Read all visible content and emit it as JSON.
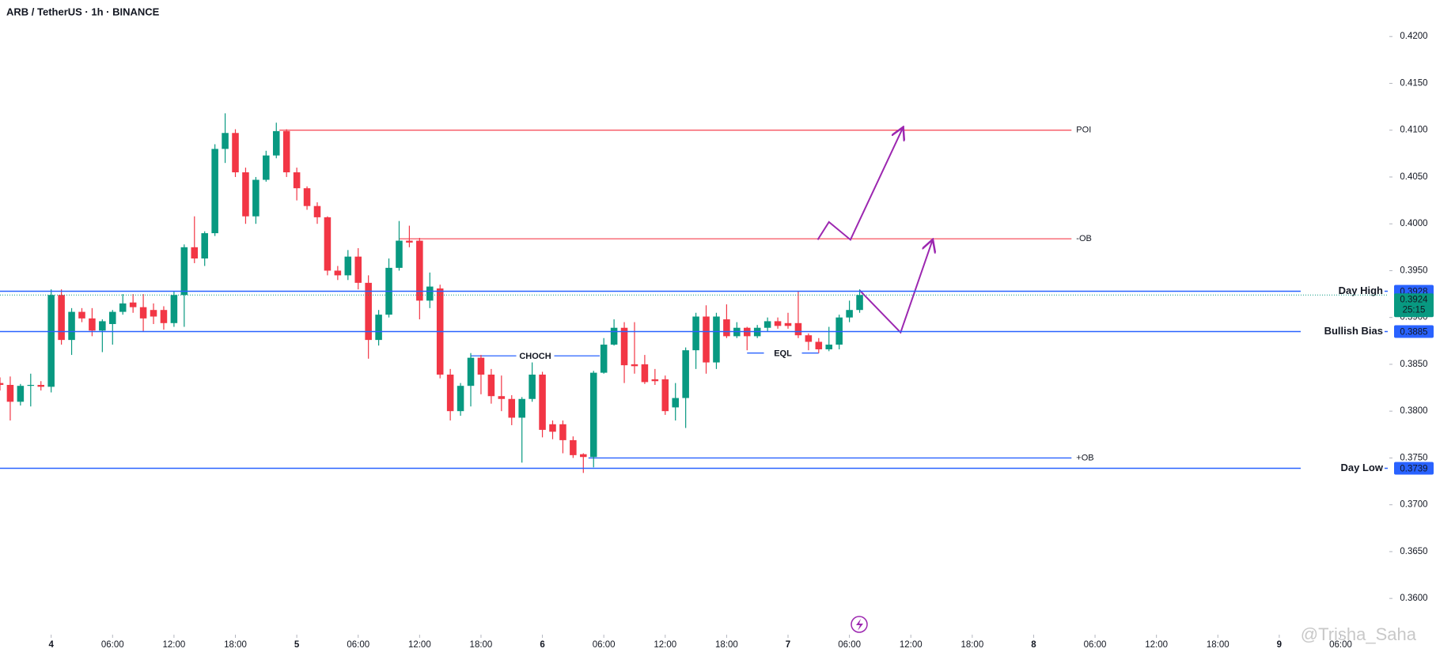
{
  "chart_data": {
    "type": "candlestick",
    "title": "ARB / TetherUS · 1h · BINANCE",
    "up_color": "#089981",
    "down_color": "#f23645",
    "series": {
      "open": [
        0.383,
        0.3828,
        0.381,
        0.3827,
        0.3828,
        0.3826,
        0.3924,
        0.3876,
        0.3906,
        0.3899,
        0.3886,
        0.3893,
        0.3906,
        0.3916,
        0.3911,
        0.3908,
        0.3908,
        0.3894,
        0.3924,
        0.3975,
        0.3963,
        0.399,
        0.408,
        0.4097,
        0.4055,
        0.4008,
        0.4047,
        0.4073,
        0.4099,
        0.4055,
        0.4038,
        0.4019,
        0.4007,
        0.395,
        0.3945,
        0.3965,
        0.3937,
        0.3876,
        0.3903,
        0.3953,
        0.3982,
        0.3982,
        0.3918,
        0.3931,
        0.3839,
        0.38,
        0.3827,
        0.3857,
        0.3839,
        0.3816,
        0.3813,
        0.3793,
        0.3813,
        0.3839,
        0.3786,
        0.3786,
        0.3769,
        0.3754,
        0.3751,
        0.3841,
        0.3871,
        0.3889,
        0.385,
        0.385,
        0.3834,
        0.3834,
        0.3804,
        0.3814,
        0.3865,
        0.3901,
        0.3852,
        0.3898,
        0.388,
        0.3889,
        0.388,
        0.3889,
        0.3896,
        0.3894,
        0.3894,
        0.3881,
        0.3874,
        0.3866,
        0.3871,
        0.39,
        0.3908
      ],
      "high": [
        0.3836,
        0.3837,
        0.3829,
        0.384,
        0.3832,
        0.393,
        0.393,
        0.391,
        0.391,
        0.391,
        0.3898,
        0.3908,
        0.3925,
        0.3925,
        0.3925,
        0.3915,
        0.3912,
        0.3928,
        0.3978,
        0.4008,
        0.3992,
        0.4085,
        0.4118,
        0.4101,
        0.406,
        0.405,
        0.4078,
        0.4108,
        0.4101,
        0.406,
        0.404,
        0.4023,
        0.4008,
        0.3955,
        0.3972,
        0.3974,
        0.3945,
        0.3908,
        0.3963,
        0.4003,
        0.3998,
        0.3985,
        0.3948,
        0.3935,
        0.3845,
        0.383,
        0.3862,
        0.386,
        0.3845,
        0.3838,
        0.3817,
        0.3815,
        0.3852,
        0.3842,
        0.379,
        0.379,
        0.3773,
        0.3755,
        0.3843,
        0.3878,
        0.3898,
        0.3895,
        0.3895,
        0.386,
        0.3845,
        0.3838,
        0.383,
        0.3868,
        0.3905,
        0.3913,
        0.3905,
        0.3914,
        0.3895,
        0.389,
        0.3892,
        0.39,
        0.39,
        0.3905,
        0.3928,
        0.3883,
        0.3878,
        0.389,
        0.3903,
        0.3918,
        0.393
      ],
      "low": [
        0.3822,
        0.379,
        0.3806,
        0.3805,
        0.3822,
        0.382,
        0.3871,
        0.386,
        0.3895,
        0.388,
        0.3863,
        0.3871,
        0.3903,
        0.3905,
        0.3885,
        0.3893,
        0.3887,
        0.389,
        0.389,
        0.3958,
        0.3955,
        0.3987,
        0.4065,
        0.405,
        0.4,
        0.4,
        0.4045,
        0.407,
        0.405,
        0.4025,
        0.4015,
        0.4,
        0.3945,
        0.394,
        0.394,
        0.393,
        0.3856,
        0.387,
        0.39,
        0.395,
        0.3975,
        0.3898,
        0.391,
        0.3835,
        0.379,
        0.3795,
        0.3805,
        0.3818,
        0.3808,
        0.38,
        0.3785,
        0.3745,
        0.381,
        0.3772,
        0.377,
        0.3755,
        0.375,
        0.3734,
        0.374,
        0.384,
        0.387,
        0.383,
        0.384,
        0.3829,
        0.3828,
        0.3796,
        0.379,
        0.3782,
        0.3845,
        0.384,
        0.3845,
        0.3878,
        0.3878,
        0.3865,
        0.3878,
        0.3885,
        0.3888,
        0.3888,
        0.3878,
        0.3865,
        0.3862,
        0.3864,
        0.3866,
        0.3895,
        0.3905
      ],
      "close": [
        0.3828,
        0.381,
        0.3827,
        0.3828,
        0.3826,
        0.3924,
        0.3876,
        0.3906,
        0.3899,
        0.3886,
        0.3896,
        0.3906,
        0.3915,
        0.3911,
        0.3899,
        0.3901,
        0.3894,
        0.3924,
        0.3975,
        0.3963,
        0.399,
        0.408,
        0.4097,
        0.4055,
        0.4008,
        0.4047,
        0.4073,
        0.4099,
        0.4055,
        0.4038,
        0.4019,
        0.4007,
        0.395,
        0.3945,
        0.3965,
        0.3937,
        0.3876,
        0.3903,
        0.3953,
        0.3982,
        0.398,
        0.3918,
        0.3933,
        0.3839,
        0.38,
        0.3827,
        0.3857,
        0.3839,
        0.3816,
        0.3813,
        0.3793,
        0.3813,
        0.3839,
        0.378,
        0.3778,
        0.3769,
        0.3753,
        0.3751,
        0.3841,
        0.3871,
        0.3889,
        0.3849,
        0.3848,
        0.3831,
        0.3832,
        0.38,
        0.3814,
        0.3865,
        0.3901,
        0.3852,
        0.3901,
        0.388,
        0.3889,
        0.388,
        0.3889,
        0.3896,
        0.3891,
        0.3891,
        0.3881,
        0.3874,
        0.3866,
        0.3871,
        0.39,
        0.3908,
        0.3924
      ]
    },
    "xlim": [
      0,
      135.6
    ],
    "ylim": [
      0.3563,
      0.4239
    ],
    "xticks": [
      {
        "value": 5,
        "label": "4"
      },
      {
        "value": 11,
        "label": "06:00"
      },
      {
        "value": 17,
        "label": "12:00"
      },
      {
        "value": 23,
        "label": "18:00"
      },
      {
        "value": 29,
        "label": "5"
      },
      {
        "value": 35,
        "label": "06:00"
      },
      {
        "value": 41,
        "label": "12:00"
      },
      {
        "value": 47,
        "label": "18:00"
      },
      {
        "value": 53,
        "label": "6"
      },
      {
        "value": 59,
        "label": "06:00"
      },
      {
        "value": 65,
        "label": "12:00"
      },
      {
        "value": 71,
        "label": "18:00"
      },
      {
        "value": 77,
        "label": "7"
      },
      {
        "value": 83,
        "label": "06:00"
      },
      {
        "value": 89,
        "label": "12:00"
      },
      {
        "value": 95,
        "label": "18:00"
      },
      {
        "value": 101,
        "label": "8"
      },
      {
        "value": 107,
        "label": "06:00"
      },
      {
        "value": 113,
        "label": "12:00"
      },
      {
        "value": 119,
        "label": "18:00"
      },
      {
        "value": 125,
        "label": "9"
      },
      {
        "value": 131,
        "label": "06:00"
      }
    ],
    "yticks": [
      {
        "value": 0.36,
        "label": "0.3600"
      },
      {
        "value": 0.365,
        "label": "0.3650"
      },
      {
        "value": 0.37,
        "label": "0.3700"
      },
      {
        "value": 0.375,
        "label": "0.3750"
      },
      {
        "value": 0.38,
        "label": "0.3800"
      },
      {
        "value": 0.385,
        "label": "0.3850"
      },
      {
        "value": 0.39,
        "label": "0.3900"
      },
      {
        "value": 0.395,
        "label": "0.3950"
      },
      {
        "value": 0.4,
        "label": "0.4000"
      },
      {
        "value": 0.405,
        "label": "0.4050"
      },
      {
        "value": 0.41,
        "label": "0.4100"
      },
      {
        "value": 0.415,
        "label": "0.4150"
      },
      {
        "value": 0.42,
        "label": "0.4200"
      }
    ],
    "levels": [
      {
        "name": "Day High",
        "value": 0.3928,
        "color": "#2962ff"
      },
      {
        "name": "Bullish Bias",
        "value": 0.3885,
        "color": "#2962ff"
      },
      {
        "name": "Day Low",
        "value": 0.3739,
        "color": "#2962ff"
      }
    ],
    "last_price": {
      "value": 0.3924,
      "countdown": "25:15",
      "color": "#089981"
    },
    "drawings": [
      {
        "label": "POI",
        "value": 0.41,
        "x_start": 27.3,
        "x_end": 104.7,
        "line_color": "#f7525f",
        "text_color": "#9c27b0",
        "text_position": "end"
      },
      {
        "label": "-OB",
        "value": 0.3984,
        "x_start": 39,
        "x_end": 104.7,
        "line_color": "#f7525f",
        "text_color": "#9c27b0",
        "text_position": "end"
      },
      {
        "label": "+OB",
        "value": 0.375,
        "x_start": 57.5,
        "x_end": 104.7,
        "line_color": "#2962ff",
        "text_color": "#9c27b0",
        "text_position": "end"
      },
      {
        "label": "CHOCH",
        "value": 0.3859,
        "x_start": 46,
        "x_end": 58.6,
        "line_color": "#2962ff",
        "text_color": "#9c27b0",
        "text_position": "middle"
      },
      {
        "label": "EQL",
        "value": 0.3862,
        "x_start": 73,
        "x_end": 80,
        "line_color": "#2962ff",
        "text_color": "#9c27b0",
        "text_position": "middle"
      }
    ],
    "projections": [
      {
        "x": [
          84,
          88,
          91.1
        ],
        "y": [
          0.3929,
          0.3884,
          0.3982
        ],
        "color": "#9c27b0"
      },
      {
        "x": [
          79.9,
          81,
          83.1,
          88.2
        ],
        "y": [
          0.3983,
          0.4002,
          0.3983,
          0.4102
        ],
        "color": "#9c27b0"
      }
    ],
    "watermark": "@Trisha_Saha"
  }
}
